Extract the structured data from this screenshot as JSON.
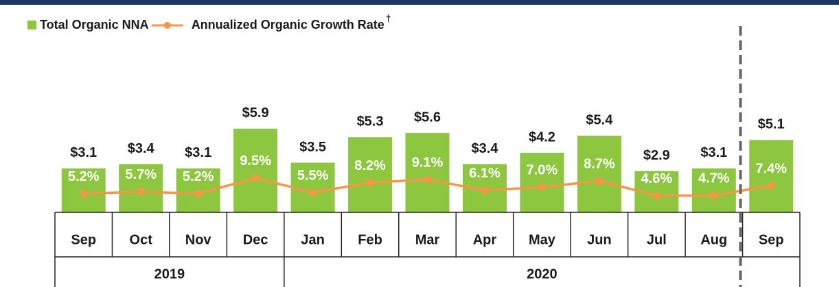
{
  "chart_data": {
    "type": "bar+line",
    "categories": [
      "Sep",
      "Oct",
      "Nov",
      "Dec",
      "Jan",
      "Feb",
      "Mar",
      "Apr",
      "May",
      "Jun",
      "Jul",
      "Aug",
      "Sep"
    ],
    "group_labels": [
      "2019",
      null,
      null,
      null,
      "2020",
      null,
      null,
      null,
      null,
      null,
      null,
      null,
      null
    ],
    "series": [
      {
        "name": "Total Organic NNA",
        "type": "bar",
        "color": "#8dc63f",
        "values": [
          3.1,
          3.4,
          3.1,
          5.9,
          3.5,
          5.3,
          5.6,
          3.4,
          4.2,
          5.4,
          2.9,
          3.1,
          5.1
        ],
        "value_labels": [
          "$3.1",
          "$3.4",
          "$3.1",
          "$5.9",
          "$3.5",
          "$5.3",
          "$5.6",
          "$3.4",
          "$4.2",
          "$5.4",
          "$2.9",
          "$3.1",
          "$5.1"
        ]
      },
      {
        "name": "Annualized Organic Growth Rate",
        "type": "line",
        "axis": "y2",
        "color": "#f79646",
        "values": [
          5.2,
          5.7,
          5.2,
          9.5,
          5.5,
          8.2,
          9.1,
          6.1,
          7.0,
          8.7,
          4.6,
          4.7,
          7.4
        ],
        "value_labels": [
          "5.2%",
          "5.7%",
          "5.2%",
          "9.5%",
          "5.5%",
          "8.2%",
          "9.1%",
          "6.1%",
          "7.0%",
          "8.7%",
          "4.6%",
          "4.7%",
          "7.4%"
        ]
      }
    ],
    "legend_footnote": "†",
    "ylim": [
      0,
      14
    ],
    "y2lim": [
      0,
      55
    ]
  }
}
